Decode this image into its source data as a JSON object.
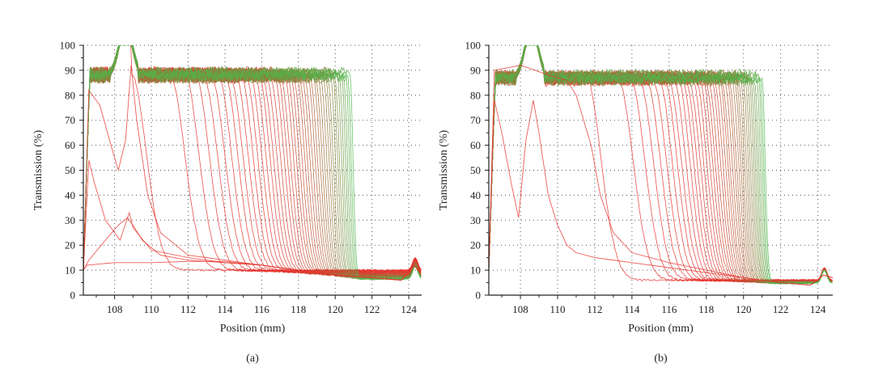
{
  "chart_data": [
    {
      "type": "line",
      "caption": "(a)",
      "xlabel": "Position (mm)",
      "ylabel": "Transmission (%)",
      "xlim": [
        106.3,
        124.7
      ],
      "ylim": [
        0,
        100
      ],
      "xticks": [
        108,
        110,
        112,
        114,
        116,
        118,
        120,
        122,
        124
      ],
      "yticks": [
        0,
        10,
        20,
        30,
        40,
        50,
        60,
        70,
        80,
        90,
        100
      ],
      "grid": "dotted",
      "series_colors": {
        "start": "#e8332e",
        "end": "#4cb84a"
      },
      "curves": {
        "count": 48,
        "plateau_level": 88,
        "drop_positions_start": 108.9,
        "drop_positions_end": 120.8,
        "final_level": 10,
        "early_traces": [
          {
            "name": "trace-1",
            "points": [
              [
                106.3,
                10
              ],
              [
                106.6,
                14
              ],
              [
                107.5,
                22
              ],
              [
                108.2,
                28
              ],
              [
                108.7,
                31
              ],
              [
                109.0,
                28
              ],
              [
                109.5,
                22
              ],
              [
                110.5,
                16
              ],
              [
                112,
                14
              ],
              [
                114,
                13
              ],
              [
                116,
                12
              ],
              [
                118,
                10
              ],
              [
                120,
                8
              ],
              [
                122,
                7
              ],
              [
                123.6,
                6
              ],
              [
                124.3,
                12
              ],
              [
                124.6,
                9
              ]
            ]
          },
          {
            "name": "trace-2",
            "points": [
              [
                106.3,
                10
              ],
              [
                106.6,
                54
              ],
              [
                106.9,
                45
              ],
              [
                107.5,
                30
              ],
              [
                108.3,
                22
              ],
              [
                108.8,
                33
              ],
              [
                109.0,
                27
              ],
              [
                110,
                18
              ],
              [
                112,
                15
              ],
              [
                114,
                13
              ],
              [
                116,
                12
              ],
              [
                118,
                10
              ],
              [
                120,
                8
              ],
              [
                122,
                7
              ],
              [
                123.6,
                6
              ],
              [
                124.3,
                12
              ],
              [
                124.6,
                9
              ]
            ]
          },
          {
            "name": "trace-3",
            "points": [
              [
                106.3,
                10
              ],
              [
                106.6,
                82
              ],
              [
                107.2,
                76
              ],
              [
                107.8,
                60
              ],
              [
                108.2,
                50
              ],
              [
                108.6,
                62
              ],
              [
                108.9,
                92
              ],
              [
                109.2,
                70
              ],
              [
                109.8,
                40
              ],
              [
                110.5,
                25
              ],
              [
                112,
                16
              ],
              [
                114,
                14
              ],
              [
                116,
                12
              ],
              [
                118,
                10
              ],
              [
                120,
                8
              ],
              [
                122,
                7
              ],
              [
                123.6,
                6
              ],
              [
                124.3,
                12
              ],
              [
                124.6,
                9
              ]
            ]
          },
          {
            "name": "trace-4",
            "points": [
              [
                106.3,
                10
              ],
              [
                106.5,
                12
              ],
              [
                108,
                13
              ],
              [
                110,
                13
              ],
              [
                112,
                13.5
              ],
              [
                114,
                13.5
              ],
              [
                116,
                12
              ],
              [
                118,
                10
              ],
              [
                120,
                8
              ],
              [
                122,
                7
              ],
              [
                123.6,
                6
              ],
              [
                124.3,
                12
              ],
              [
                124.6,
                9
              ]
            ]
          }
        ]
      }
    },
    {
      "type": "line",
      "caption": "(b)",
      "xlabel": "Position (mm)",
      "ylabel": "Transmission (%)",
      "xlim": [
        106.3,
        124.8
      ],
      "ylim": [
        0,
        100
      ],
      "xticks": [
        108,
        110,
        112,
        114,
        116,
        118,
        120,
        122,
        124
      ],
      "yticks": [
        0,
        10,
        20,
        30,
        40,
        50,
        60,
        70,
        80,
        90,
        100
      ],
      "grid": "dotted",
      "series_colors": {
        "start": "#e8332e",
        "end": "#4cb84a"
      },
      "curves": {
        "count": 44,
        "plateau_level": 87,
        "drop_positions_start": 111.5,
        "drop_positions_end": 121.0,
        "final_level": 6,
        "early_traces": [
          {
            "name": "trace-1",
            "points": [
              [
                106.3,
                10
              ],
              [
                106.6,
                78
              ],
              [
                107.0,
                65
              ],
              [
                107.5,
                45
              ],
              [
                107.9,
                31
              ],
              [
                108.3,
                62
              ],
              [
                108.7,
                78
              ],
              [
                109.0,
                65
              ],
              [
                109.5,
                40
              ],
              [
                110,
                28
              ],
              [
                110.5,
                20
              ],
              [
                111,
                17
              ],
              [
                112,
                15
              ],
              [
                114,
                13
              ],
              [
                116,
                11
              ],
              [
                118,
                9
              ],
              [
                120,
                7
              ],
              [
                122,
                5
              ],
              [
                123.6,
                4
              ],
              [
                124.3,
                8
              ],
              [
                124.8,
                7
              ]
            ]
          },
          {
            "name": "trace-2",
            "points": [
              [
                106.3,
                10
              ],
              [
                106.6,
                90
              ],
              [
                108.0,
                92
              ],
              [
                108.8,
                90
              ],
              [
                109.5,
                88
              ],
              [
                110.5,
                86
              ],
              [
                111.0,
                80
              ],
              [
                111.8,
                60
              ],
              [
                112.3,
                40
              ],
              [
                113,
                25
              ],
              [
                114,
                17
              ],
              [
                116,
                13
              ],
              [
                118,
                10
              ],
              [
                120,
                7
              ],
              [
                122,
                5
              ],
              [
                123.6,
                4
              ],
              [
                124.3,
                8
              ],
              [
                124.8,
                7
              ]
            ]
          }
        ]
      }
    }
  ]
}
